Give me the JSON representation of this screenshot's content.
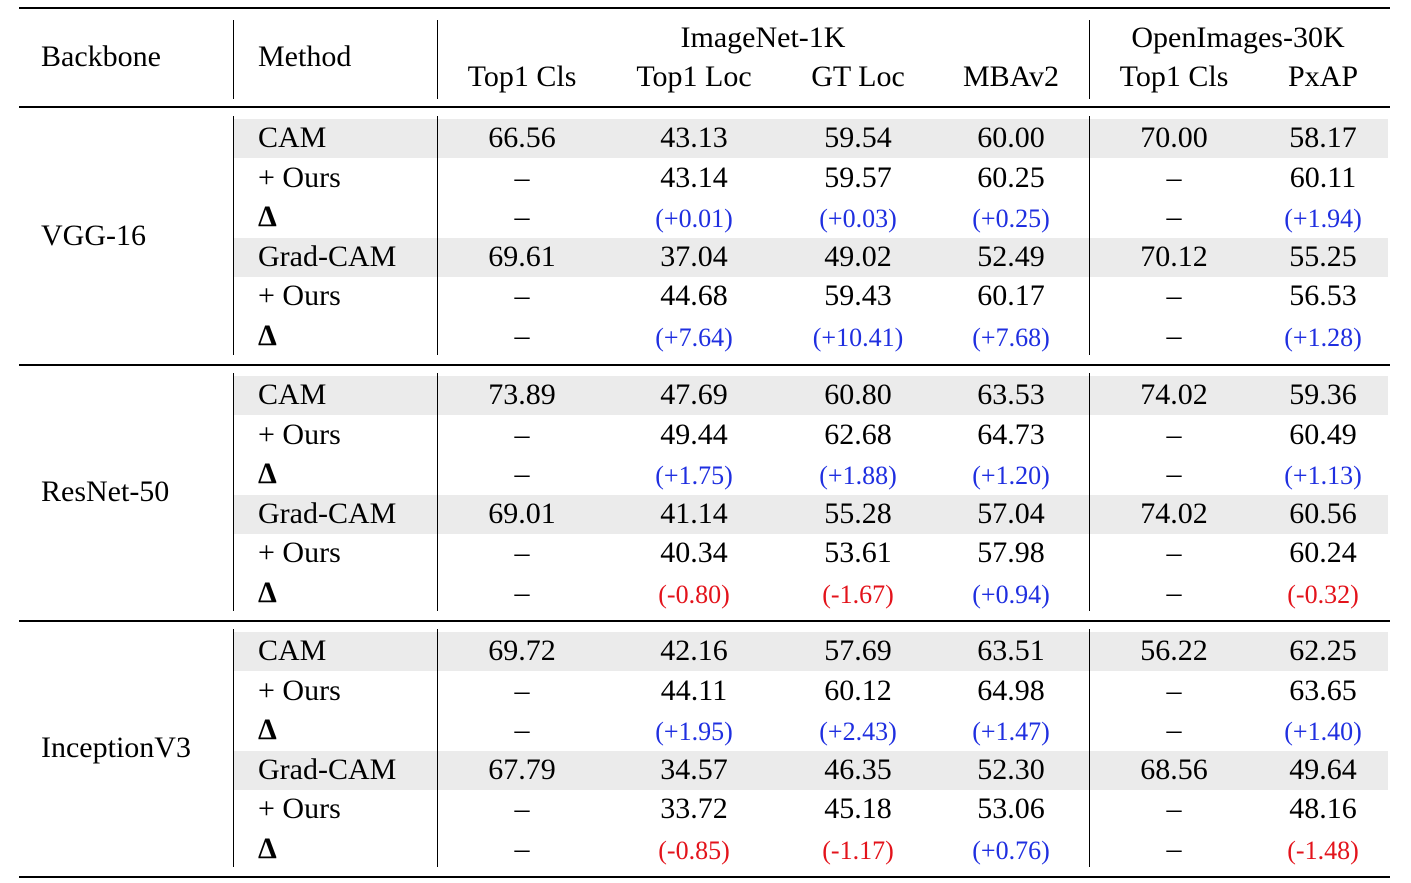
{
  "header": {
    "backbone": "Backbone",
    "method": "Method",
    "group_imagenet": "ImageNet-1K",
    "group_openimages": "OpenImages-30K",
    "columns": [
      "Top1 Cls",
      "Top1 Loc",
      "GT Loc",
      "MBAv2",
      "Top1 Cls",
      "PxAP"
    ]
  },
  "dash": "–",
  "colors": {
    "positive": "#1f2fe0",
    "negative": "#e3131b",
    "shade": "#ebebeb"
  },
  "sections": [
    {
      "backbone": "VGG-16",
      "rows": [
        {
          "method": "CAM",
          "cls": "66.56",
          "loc": "43.13",
          "gtloc": "59.54",
          "mba": "60.00",
          "oi_cls": "70.00",
          "pxap": "58.17"
        },
        {
          "method": "+ Ours",
          "cls": "–",
          "loc": "43.14",
          "gtloc": "59.57",
          "mba": "60.25",
          "oi_cls": "–",
          "pxap": "60.11"
        },
        {
          "method": "Δ",
          "cls": "–",
          "loc": "(+0.01)",
          "gtloc": "(+0.03)",
          "mba": "(+0.25)",
          "oi_cls": "–",
          "pxap": "(+1.94)"
        },
        {
          "method": "Grad-CAM",
          "cls": "69.61",
          "loc": "37.04",
          "gtloc": "49.02",
          "mba": "52.49",
          "oi_cls": "70.12",
          "pxap": "55.25"
        },
        {
          "method": "+ Ours",
          "cls": "–",
          "loc": "44.68",
          "gtloc": "59.43",
          "mba": "60.17",
          "oi_cls": "–",
          "pxap": "56.53"
        },
        {
          "method": "Δ",
          "cls": "–",
          "loc": "(+7.64)",
          "gtloc": "(+10.41)",
          "mba": "(+7.68)",
          "oi_cls": "–",
          "pxap": "(+1.28)"
        }
      ]
    },
    {
      "backbone": "ResNet-50",
      "rows": [
        {
          "method": "CAM",
          "cls": "73.89",
          "loc": "47.69",
          "gtloc": "60.80",
          "mba": "63.53",
          "oi_cls": "74.02",
          "pxap": "59.36"
        },
        {
          "method": "+ Ours",
          "cls": "–",
          "loc": "49.44",
          "gtloc": "62.68",
          "mba": "64.73",
          "oi_cls": "–",
          "pxap": "60.49"
        },
        {
          "method": "Δ",
          "cls": "–",
          "loc": "(+1.75)",
          "gtloc": "(+1.88)",
          "mba": "(+1.20)",
          "oi_cls": "–",
          "pxap": "(+1.13)"
        },
        {
          "method": "Grad-CAM",
          "cls": "69.01",
          "loc": "41.14",
          "gtloc": "55.28",
          "mba": "57.04",
          "oi_cls": "74.02",
          "pxap": "60.56"
        },
        {
          "method": "+ Ours",
          "cls": "–",
          "loc": "40.34",
          "gtloc": "53.61",
          "mba": "57.98",
          "oi_cls": "–",
          "pxap": "60.24"
        },
        {
          "method": "Δ",
          "cls": "–",
          "loc": "(-0.80)",
          "gtloc": "(-1.67)",
          "mba": "(+0.94)",
          "oi_cls": "–",
          "pxap": "(-0.32)"
        }
      ]
    },
    {
      "backbone": "InceptionV3",
      "rows": [
        {
          "method": "CAM",
          "cls": "69.72",
          "loc": "42.16",
          "gtloc": "57.69",
          "mba": "63.51",
          "oi_cls": "56.22",
          "pxap": "62.25"
        },
        {
          "method": "+ Ours",
          "cls": "–",
          "loc": "44.11",
          "gtloc": "60.12",
          "mba": "64.98",
          "oi_cls": "–",
          "pxap": "63.65"
        },
        {
          "method": "Δ",
          "cls": "–",
          "loc": "(+1.95)",
          "gtloc": "(+2.43)",
          "mba": "(+1.47)",
          "oi_cls": "–",
          "pxap": "(+1.40)"
        },
        {
          "method": "Grad-CAM",
          "cls": "67.79",
          "loc": "34.57",
          "gtloc": "46.35",
          "mba": "52.30",
          "oi_cls": "68.56",
          "pxap": "49.64"
        },
        {
          "method": "+ Ours",
          "cls": "–",
          "loc": "33.72",
          "gtloc": "45.18",
          "mba": "53.06",
          "oi_cls": "–",
          "pxap": "48.16"
        },
        {
          "method": "Δ",
          "cls": "–",
          "loc": "(-0.85)",
          "gtloc": "(-1.17)",
          "mba": "(+0.76)",
          "oi_cls": "–",
          "pxap": "(-1.48)"
        }
      ]
    }
  ]
}
